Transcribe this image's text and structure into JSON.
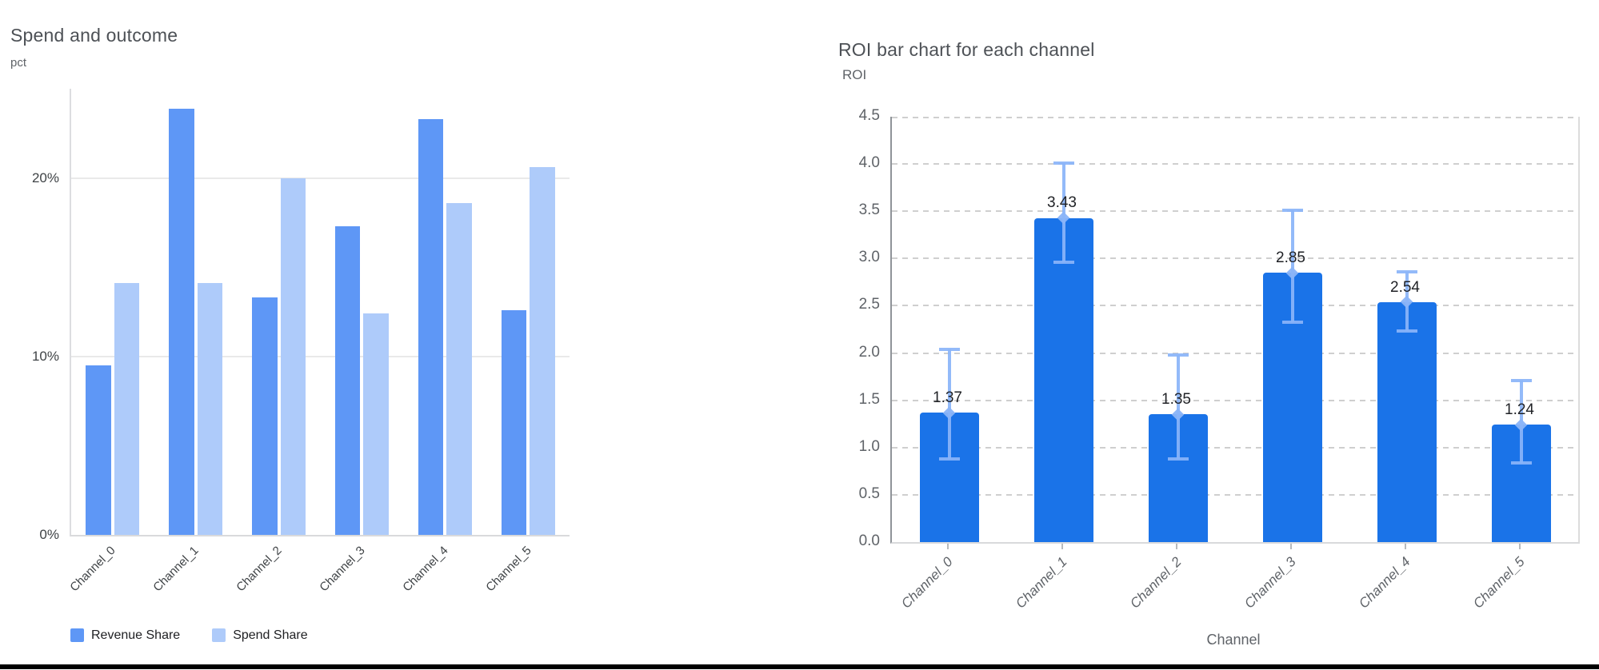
{
  "page": {
    "background_color": "#ffffff",
    "bottom_border_color": "#000000"
  },
  "chart_data": [
    {
      "type": "bar",
      "title": "Spend and outcome",
      "ylabel": "pct",
      "xlabel": "",
      "categories": [
        "Channel_0",
        "Channel_1",
        "Channel_2",
        "Channel_3",
        "Channel_4",
        "Channel_5"
      ],
      "series": [
        {
          "name": "Revenue Share",
          "color": "#5e97f6",
          "values": [
            9.5,
            23.9,
            13.3,
            17.3,
            23.3,
            12.6
          ]
        },
        {
          "name": "Spend Share",
          "color": "#aecbfa",
          "values": [
            14.1,
            14.1,
            20.0,
            12.4,
            18.6,
            20.6
          ]
        }
      ],
      "value_unit": "%",
      "ylim": [
        0,
        25
      ],
      "y_ticks": [
        {
          "value": 0,
          "label": "0%"
        },
        {
          "value": 10,
          "label": "10%"
        },
        {
          "value": 20,
          "label": "20%"
        }
      ],
      "grid": "solid-horizontal",
      "legend_position": "bottom-left",
      "x_labels_rotated": true
    },
    {
      "type": "bar",
      "title": "ROI bar chart for each channel",
      "ylabel": "ROI",
      "xlabel": "Channel",
      "categories": [
        "Channel_0",
        "Channel_1",
        "Channel_2",
        "Channel_3",
        "Channel_4",
        "Channel_5"
      ],
      "values": [
        1.37,
        3.43,
        1.35,
        2.85,
        2.54,
        1.24
      ],
      "bar_labels": [
        "1.37",
        "3.43",
        "1.35",
        "2.85",
        "2.54",
        "1.24"
      ],
      "error_bars": [
        {
          "low": 0.88,
          "high": 2.04
        },
        {
          "low": 2.96,
          "high": 4.01
        },
        {
          "low": 0.88,
          "high": 1.98
        },
        {
          "low": 2.33,
          "high": 3.51
        },
        {
          "low": 2.23,
          "high": 2.86
        },
        {
          "low": 0.84,
          "high": 1.71
        }
      ],
      "bar_color": "#1a73e8",
      "error_bar_color": "#8ab4f8",
      "ylim": [
        0,
        4.5
      ],
      "y_ticks": [
        {
          "value": 0.0,
          "label": "0.0"
        },
        {
          "value": 0.5,
          "label": "0.5"
        },
        {
          "value": 1.0,
          "label": "1.0"
        },
        {
          "value": 1.5,
          "label": "1.5"
        },
        {
          "value": 2.0,
          "label": "2.0"
        },
        {
          "value": 2.5,
          "label": "2.5"
        },
        {
          "value": 3.0,
          "label": "3.0"
        },
        {
          "value": 3.5,
          "label": "3.5"
        },
        {
          "value": 4.0,
          "label": "4.0"
        },
        {
          "value": 4.5,
          "label": "4.5"
        },
        {
          "value": 4.5,
          "label": "4.5"
        }
      ],
      "grid": "dashed-horizontal",
      "legend_position": "none",
      "x_labels_rotated": true,
      "x_labels_italic": true
    }
  ]
}
